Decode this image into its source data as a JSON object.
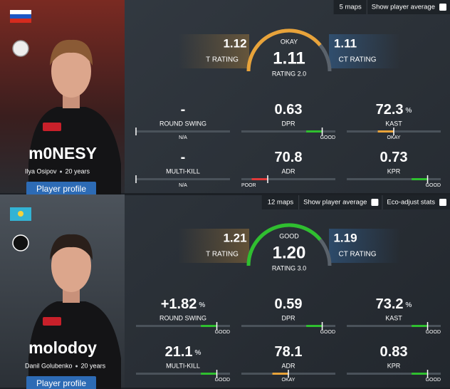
{
  "players": [
    {
      "maps": "5 maps",
      "toggles": [
        "Show player average"
      ],
      "nickname": "m0NESY",
      "real_name": "Ilya Osipov",
      "age": "20 years",
      "profile_button": "Player profile",
      "t_rating": "1.12",
      "t_rating_label": "T RATING",
      "rating_verdict": "OKAY",
      "rating": "1.11",
      "rating_label": "RATING 2.0",
      "ct_rating": "1.11",
      "ct_rating_label": "CT RATING",
      "stats": [
        {
          "value": "-",
          "label": "ROUND SWING",
          "verdict": "N/A"
        },
        {
          "value": "0.63",
          "label": "DPR",
          "verdict": "GOOD"
        },
        {
          "value": "72.3",
          "unit": "%",
          "label": "KAST",
          "verdict": "OKAY"
        },
        {
          "value": "-",
          "label": "MULTI-KILL",
          "verdict": "N/A"
        },
        {
          "value": "70.8",
          "label": "ADR",
          "verdict": "POOR"
        },
        {
          "value": "0.73",
          "label": "KPR",
          "verdict": "GOOD"
        }
      ]
    },
    {
      "maps": "12 maps",
      "toggles": [
        "Show player average",
        "Eco-adjust stats"
      ],
      "nickname": "molodoy",
      "real_name": "Danil Golubenko",
      "age": "20 years",
      "profile_button": "Player profile",
      "t_rating": "1.21",
      "t_rating_label": "T RATING",
      "rating_verdict": "GOOD",
      "rating": "1.20",
      "rating_label": "RATING 3.0",
      "ct_rating": "1.19",
      "ct_rating_label": "CT RATING",
      "stats": [
        {
          "value": "+1.82",
          "unit": "%",
          "label": "ROUND SWING",
          "verdict": "GOOD"
        },
        {
          "value": "0.59",
          "label": "DPR",
          "verdict": "GOOD"
        },
        {
          "value": "73.2",
          "unit": "%",
          "label": "KAST",
          "verdict": "GOOD"
        },
        {
          "value": "21.1",
          "unit": "%",
          "label": "MULTI-KILL",
          "verdict": "GOOD"
        },
        {
          "value": "78.1",
          "label": "ADR",
          "verdict": "OKAY"
        },
        {
          "value": "0.83",
          "label": "KPR",
          "verdict": "GOOD"
        }
      ]
    }
  ]
}
